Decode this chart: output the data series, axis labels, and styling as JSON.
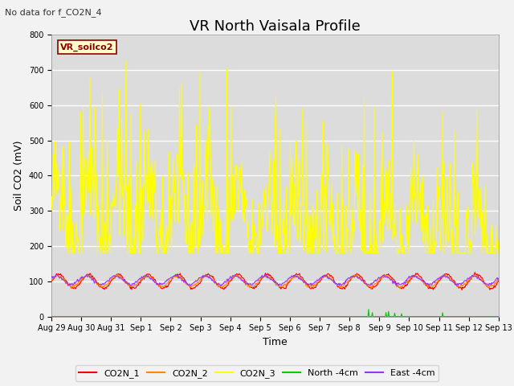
{
  "title": "VR North Vaisala Profile",
  "subtitle": "No data for f_CO2N_4",
  "ylabel": "Soil CO2 (mV)",
  "xlabel": "Time",
  "ylim": [
    0,
    800
  ],
  "legend_label": "VR_soilco2",
  "background_color": "#dcdcdc",
  "fig_background": "#f2f2f2",
  "title_fontsize": 13,
  "axis_fontsize": 9,
  "tick_fontsize": 7,
  "tick_labels": [
    "Aug 29",
    "Aug 30",
    "Aug 31",
    "Sep 1",
    "Sep 2",
    "Sep 3",
    "Sep 4",
    "Sep 5",
    "Sep 6",
    "Sep 7",
    "Sep 8",
    "Sep 9",
    "Sep 10",
    "Sep 11",
    "Sep 12",
    "Sep 13"
  ],
  "colors": {
    "yellow": "#ffff00",
    "red": "#ff0000",
    "orange": "#ff8800",
    "green": "#00cc00",
    "purple": "#9933ff"
  }
}
